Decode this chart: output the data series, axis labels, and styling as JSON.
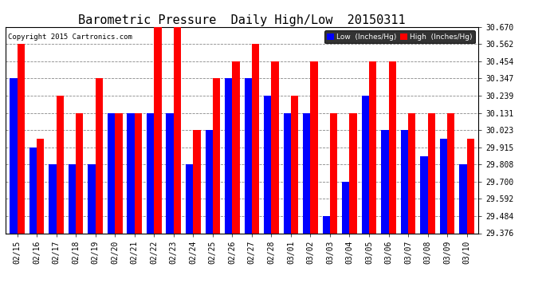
{
  "title": "Barometric Pressure  Daily High/Low  20150311",
  "copyright": "Copyright 2015 Cartronics.com",
  "legend_low": "Low  (Inches/Hg)",
  "legend_high": "High  (Inches/Hg)",
  "dates": [
    "02/15",
    "02/16",
    "02/17",
    "02/18",
    "02/19",
    "02/20",
    "02/21",
    "02/22",
    "02/23",
    "02/24",
    "02/25",
    "02/26",
    "02/27",
    "02/28",
    "03/01",
    "03/02",
    "03/03",
    "03/04",
    "03/05",
    "03/06",
    "03/07",
    "03/08",
    "03/09",
    "03/10"
  ],
  "low_values": [
    30.347,
    29.915,
    29.808,
    29.808,
    29.808,
    30.131,
    30.131,
    30.131,
    30.131,
    29.808,
    30.023,
    30.347,
    30.347,
    30.239,
    30.131,
    30.131,
    29.484,
    29.7,
    30.239,
    30.023,
    30.023,
    29.86,
    29.97,
    29.808
  ],
  "high_values": [
    30.562,
    29.97,
    30.239,
    30.131,
    30.347,
    30.131,
    30.131,
    30.67,
    30.67,
    30.023,
    30.347,
    30.454,
    30.562,
    30.454,
    30.239,
    30.454,
    30.131,
    30.131,
    30.454,
    30.454,
    30.131,
    30.131,
    30.131,
    29.97
  ],
  "ymin": 29.376,
  "ylim": [
    29.376,
    30.67
  ],
  "yticks": [
    29.376,
    29.484,
    29.592,
    29.7,
    29.808,
    29.915,
    30.023,
    30.131,
    30.239,
    30.347,
    30.454,
    30.562,
    30.67
  ],
  "bar_width": 0.38,
  "low_color": "#0000ff",
  "high_color": "#ff0000",
  "bg_color": "#ffffff",
  "grid_color": "#888888",
  "title_fontsize": 11,
  "tick_fontsize": 7,
  "label_fontsize": 7
}
